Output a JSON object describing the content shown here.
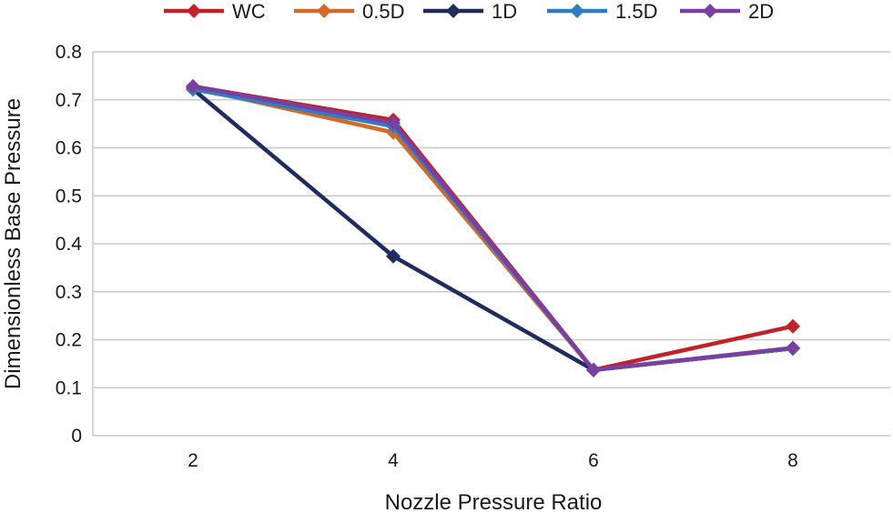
{
  "chart_data": {
    "type": "line",
    "title": "",
    "xlabel": "Nozzle Pressure Ratio",
    "ylabel": "Dimensionless Base Pressure",
    "x": [
      2,
      4,
      6,
      8
    ],
    "x_tick_labels": [
      "2",
      "4",
      "6",
      "8"
    ],
    "y_tick_labels": [
      "0",
      "0.1",
      "0.2",
      "0.3",
      "0.4",
      "0.5",
      "0.6",
      "0.7",
      "0.8"
    ],
    "ylim": [
      0,
      0.8
    ],
    "grid": "horizontal",
    "legend_position": "top",
    "marker": "diamond",
    "series": [
      {
        "name": "WC",
        "color": "#c0222a",
        "values": [
          0.728,
          0.658,
          0.137,
          0.228
        ]
      },
      {
        "name": "0.5D",
        "color": "#d46a2a",
        "values": [
          0.725,
          0.632,
          0.137,
          0.182
        ]
      },
      {
        "name": "1D",
        "color": "#1f2d5e",
        "values": [
          0.722,
          0.374,
          0.137,
          0.182
        ]
      },
      {
        "name": "1.5D",
        "color": "#2e7fc2",
        "values": [
          0.722,
          0.645,
          0.137,
          0.182
        ]
      },
      {
        "name": "2D",
        "color": "#7b3fa0",
        "values": [
          0.728,
          0.652,
          0.137,
          0.183
        ]
      }
    ]
  }
}
